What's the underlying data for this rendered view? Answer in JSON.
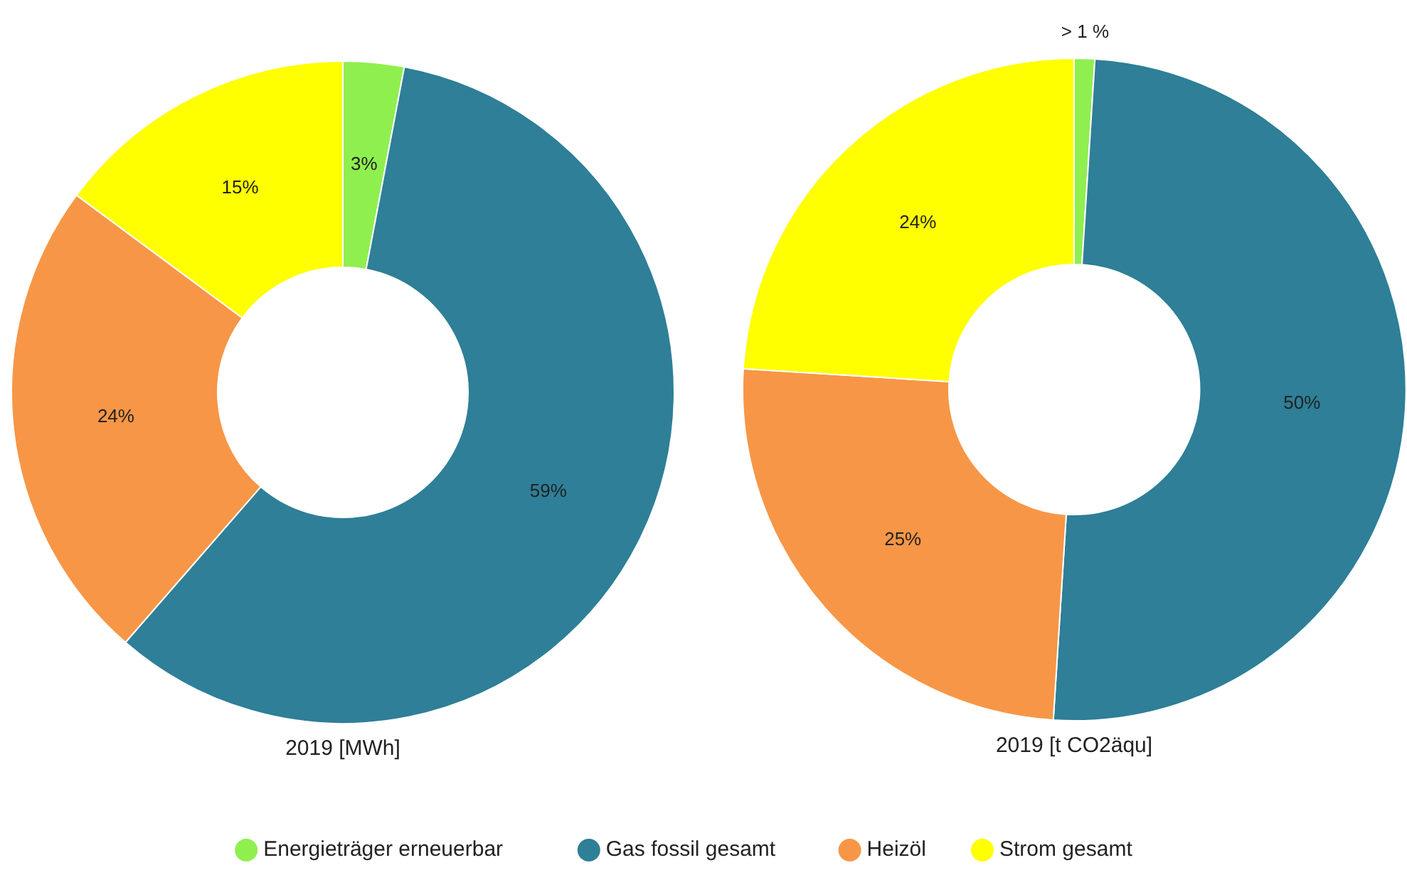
{
  "chart_data": {
    "type": "donut",
    "categories": [
      "Energieträger erneuerbar",
      "Gas fossil gesamt",
      "Heizöl",
      "Strom gesamt"
    ],
    "colors": [
      "#8fef4f",
      "#2e7f97",
      "#f79646",
      "#ffff00"
    ],
    "legend": "bottom",
    "series": [
      {
        "name": "2019 [MWh]",
        "values": [
          3,
          59,
          24,
          15
        ],
        "value_labels": [
          "3%",
          "59%",
          "24%",
          "15%"
        ]
      },
      {
        "name": "2019 [t CO2äqu]",
        "values": [
          1,
          50,
          25,
          24
        ],
        "value_labels": [
          "> 1 %",
          "50%",
          "25%",
          "24%"
        ]
      }
    ]
  }
}
